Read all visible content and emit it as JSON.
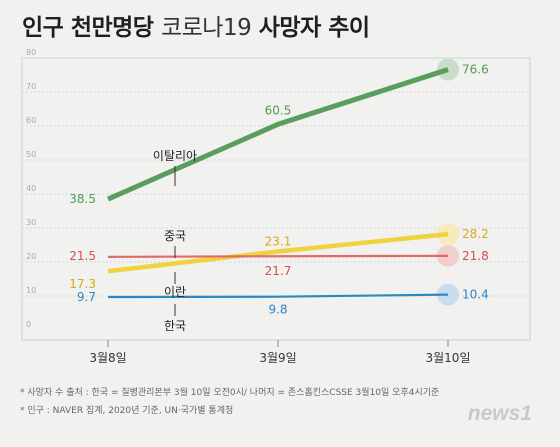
{
  "title": {
    "part1": "인구 천만명당",
    "part2": "코로나19",
    "part3": "사망자 추이"
  },
  "chart_data": {
    "type": "line",
    "title": "인구 천만명당 코로나19 사망자 추이",
    "categories": [
      "3월8일",
      "3월9일",
      "3월10일"
    ],
    "yticks": [
      0,
      10,
      20,
      30,
      40,
      50,
      60,
      70,
      80
    ],
    "ylim": [
      0,
      80
    ],
    "grid": true,
    "series": [
      {
        "name": "이탈리아",
        "values": [
          38.5,
          60.5,
          76.6
        ],
        "color": "#5a9e5e",
        "labelColor": "#4f9a55",
        "endCircle": "#c9dec8"
      },
      {
        "name": "중국",
        "values": [
          17.3,
          23.1,
          28.2
        ],
        "color": "#f0d33c",
        "labelColor": "#d9a81c",
        "endCircle": "#f5eab8"
      },
      {
        "name": "이란",
        "values": [
          21.5,
          21.7,
          21.8
        ],
        "color": "#e06a6a",
        "labelColor": "#d45050",
        "endCircle": "#f1cfcf"
      },
      {
        "name": "한국",
        "values": [
          9.7,
          9.8,
          10.4
        ],
        "color": "#2f86c5",
        "labelColor": "#2f86c5",
        "endCircle": "#c8dcee"
      }
    ]
  },
  "notes": {
    "source": "* 사망자 수 출처 : 한국 = 질병관리본부 3월 10일 오전0시/ 나머지 = 존스홉킨스CSSE 3월10일 오후4시기준",
    "population": "* 인구 : NAVER 집계, 2020년 기준, UN·국가별 통계청"
  },
  "logo": "news1"
}
